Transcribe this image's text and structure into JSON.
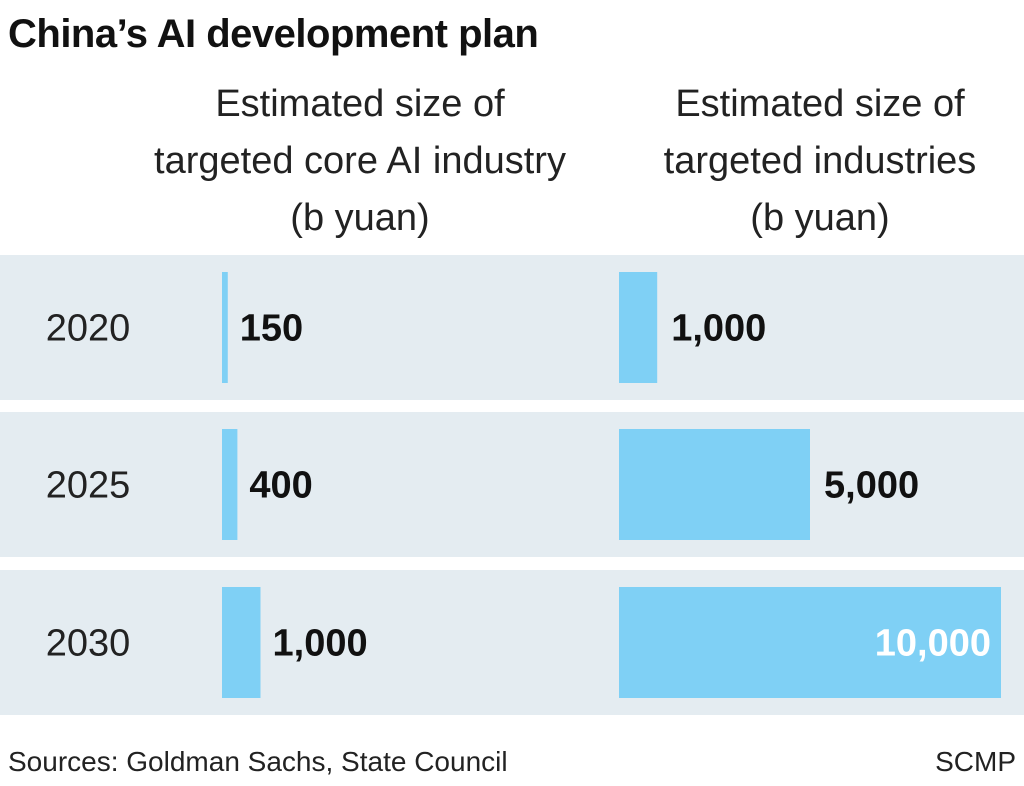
{
  "title": "China’s AI development plan",
  "headers": {
    "core": [
      "Estimated size of",
      "targeted core AI industry",
      "(b yuan)"
    ],
    "industries": [
      "Estimated size of",
      "targeted industries",
      "(b yuan)"
    ]
  },
  "footer": {
    "source": "Sources: Goldman Sachs, State Council",
    "brand": "SCMP"
  },
  "colors": {
    "bar": "#7fd0f5",
    "band": "#e4ecf1"
  },
  "chart_data": {
    "type": "bar",
    "categories": [
      "2020",
      "2025",
      "2030"
    ],
    "series": [
      {
        "values": [
          150,
          400,
          1000
        ],
        "labels": [
          "150",
          "400",
          "1,000"
        ]
      },
      {
        "values": [
          1000,
          5000,
          10000
        ],
        "labels": [
          "1,000",
          "5,000",
          "10,000"
        ]
      }
    ],
    "title": "China’s AI development plan",
    "xlabel": "",
    "ylabel": "",
    "ylim": [
      0,
      10000
    ]
  }
}
